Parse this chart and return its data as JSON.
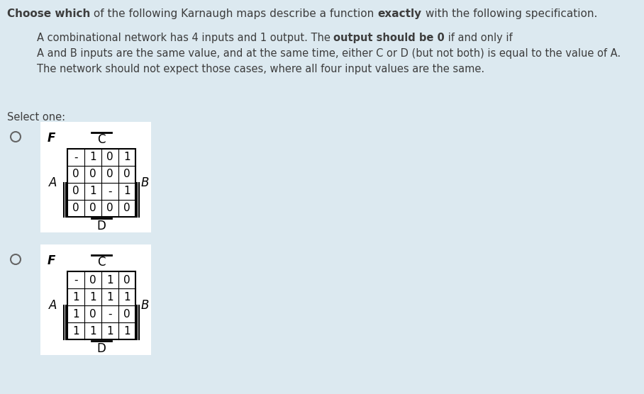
{
  "background_color": "#dce9f0",
  "title_parts": [
    {
      "text": "Choose which",
      "bold": true
    },
    {
      "text": " of the following Karnaugh maps describe a function ",
      "bold": false
    },
    {
      "text": "exactly",
      "bold": true
    },
    {
      "text": " with the following specification.",
      "bold": false
    }
  ],
  "body_lines": [
    [
      {
        "text": "A combinational network has 4 inputs and 1 output. The ",
        "bold": false
      },
      {
        "text": "output should be 0",
        "bold": true
      },
      {
        "text": " if and only if",
        "bold": false
      }
    ],
    [
      {
        "text": "A and B inputs are the same value, and at the same time, either C or D (but not both) is equal to the value of A.",
        "bold": false
      }
    ],
    [
      {
        "text": "The network should not expect those cases, where all four input values are the same.",
        "bold": false
      }
    ]
  ],
  "select_one": "Select one:",
  "kmap1": {
    "F_label": "F",
    "C_label": "C",
    "A_label": "A",
    "B_label": "B",
    "D_label": "D",
    "rows": [
      [
        "-",
        "1",
        "0",
        "1"
      ],
      [
        "0",
        "0",
        "0",
        "0"
      ],
      [
        "0",
        "1",
        "-",
        "1"
      ],
      [
        "0",
        "0",
        "0",
        "0"
      ]
    ]
  },
  "kmap2": {
    "F_label": "F",
    "C_label": "C",
    "A_label": "A",
    "B_label": "B",
    "D_label": "D",
    "rows": [
      [
        "-",
        "0",
        "1",
        "0"
      ],
      [
        "1",
        "1",
        "1",
        "1"
      ],
      [
        "1",
        "0",
        "-",
        "0"
      ],
      [
        "1",
        "1",
        "1",
        "1"
      ]
    ]
  }
}
